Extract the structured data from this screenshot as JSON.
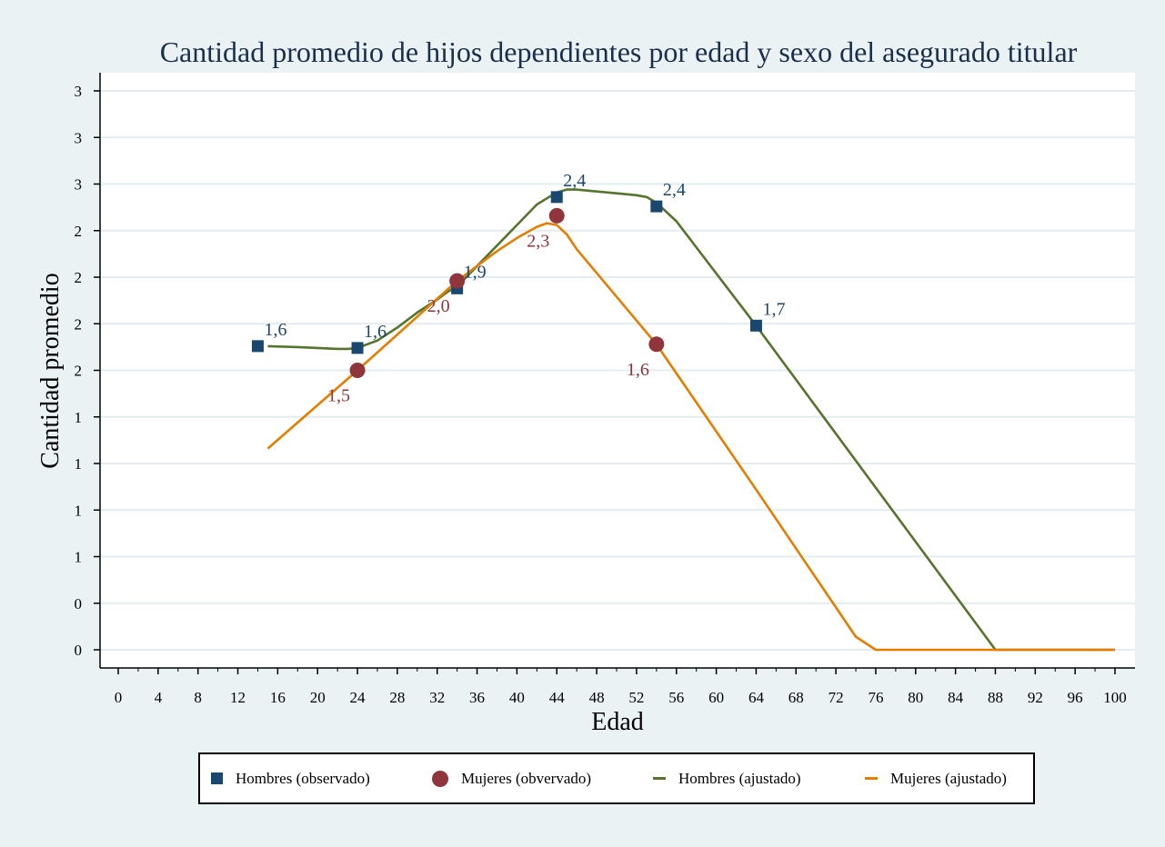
{
  "chart_data": {
    "type": "line",
    "title": "Cantidad promedio de hijos dependientes por edad y sexo del asegurado titular",
    "xlabel": "Edad",
    "ylabel": "Cantidad promedio",
    "xlim": [
      -2,
      102
    ],
    "ylim": [
      -0.2,
      3.25
    ],
    "x_ticks": [
      "0",
      "4",
      "8",
      "12",
      "16",
      "20",
      "24",
      "28",
      "32",
      "36",
      "40",
      "44",
      "48",
      "52",
      "56",
      "60",
      "64",
      "68",
      "72",
      "76",
      "80",
      "84",
      "88",
      "92",
      "96",
      "100"
    ],
    "y_tick_values": [
      0,
      0.25,
      0.5,
      0.75,
      1.0,
      1.25,
      1.5,
      1.75,
      2.0,
      2.25,
      2.5,
      2.75,
      3.0
    ],
    "y_tick_labels": [
      "0",
      "0",
      "1",
      "1",
      "1",
      "1",
      "2",
      "2",
      "2",
      "2",
      "3",
      "3",
      "3"
    ],
    "grid": true,
    "legend_position": "bottom",
    "colors": {
      "hombres_obs": "#1a476f",
      "mujeres_obs": "#90353b",
      "hombres_fit": "#55752f",
      "mujeres_fit": "#e37e00",
      "plot_bg": "#ffffff",
      "grid": "#e3ecee"
    },
    "series": [
      {
        "name": "Hombres (observado)",
        "kind": "scatter",
        "marker": "square",
        "points": [
          {
            "x": 14,
            "y": 1.63,
            "label": "1,6"
          },
          {
            "x": 24,
            "y": 1.62,
            "label": "1,6"
          },
          {
            "x": 34,
            "y": 1.94,
            "label": "1,9"
          },
          {
            "x": 44,
            "y": 2.43,
            "label": "2,4"
          },
          {
            "x": 54,
            "y": 2.38,
            "label": "2,4"
          },
          {
            "x": 64,
            "y": 1.74,
            "label": "1,7"
          }
        ]
      },
      {
        "name": "Mujeres (obvervado)",
        "kind": "scatter",
        "marker": "circle",
        "points": [
          {
            "x": 24,
            "y": 1.5,
            "label": "1,5"
          },
          {
            "x": 34,
            "y": 1.98,
            "label": "2,0"
          },
          {
            "x": 44,
            "y": 2.33,
            "label": "2,3"
          },
          {
            "x": 54,
            "y": 1.64,
            "label": "1,6"
          }
        ]
      },
      {
        "name": "Hombres (ajustado)",
        "kind": "line",
        "x": [
          15,
          18,
          22,
          23,
          24,
          26,
          28,
          30,
          32,
          33,
          34,
          36,
          38,
          40,
          42,
          44,
          45,
          46,
          48,
          50,
          52,
          53,
          54,
          56,
          64,
          72,
          80,
          88,
          90,
          91,
          92,
          93,
          94,
          100
        ],
        "y": [
          1.63,
          1.625,
          1.615,
          1.615,
          1.62,
          1.66,
          1.73,
          1.81,
          1.88,
          1.92,
          1.95,
          2.06,
          2.17,
          2.28,
          2.39,
          2.455,
          2.47,
          2.47,
          2.46,
          2.45,
          2.44,
          2.43,
          2.4,
          2.3,
          1.74,
          1.16,
          0.58,
          0.0,
          -0.15,
          -0.23,
          -0.28,
          -0.298,
          -0.3,
          -0.3
        ]
      },
      {
        "name": "Mujeres (ajustado)",
        "kind": "line",
        "x": [
          15,
          24,
          34,
          36,
          38,
          40,
          42,
          43,
          44,
          45,
          46,
          54,
          64,
          74,
          76,
          77,
          78,
          79,
          80,
          100
        ],
        "y": [
          1.08,
          1.5,
          1.98,
          2.06,
          2.14,
          2.21,
          2.27,
          2.29,
          2.28,
          2.23,
          2.15,
          1.64,
          0.86,
          0.07,
          -0.09,
          -0.18,
          -0.25,
          -0.29,
          -0.3,
          -0.3
        ]
      }
    ]
  }
}
